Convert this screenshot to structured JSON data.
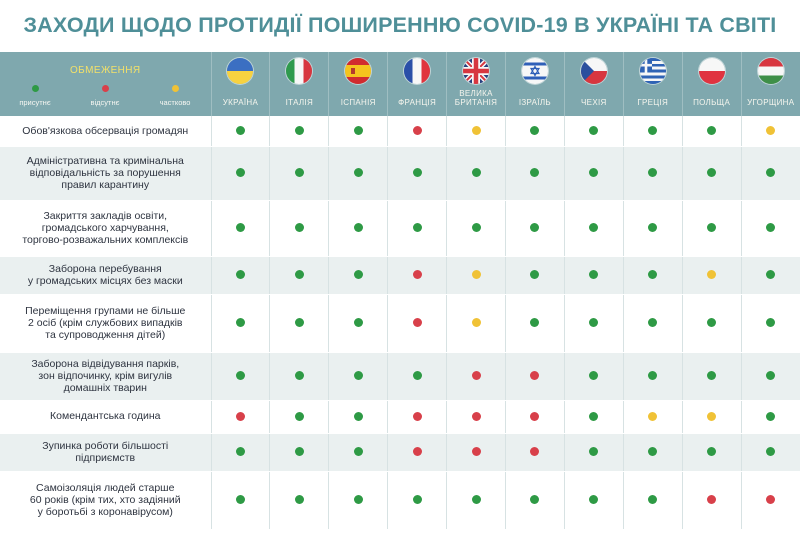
{
  "title": "ЗАХОДИ ЩОДО ПРОТИДІЇ ПОШИРЕННЮ COVID-19 В УКРАЇНІ ТА СВІТІ",
  "legend": {
    "title": "ОБМЕЖЕННЯ",
    "items": [
      {
        "key": "present",
        "label": "присутнє",
        "color": "#2e9a45"
      },
      {
        "key": "absent",
        "label": "відсутнє",
        "color": "#d8404a"
      },
      {
        "key": "partial",
        "label": "частково",
        "color": "#f0c236"
      }
    ]
  },
  "countries": [
    {
      "name": "УКРАЇНА",
      "flag": "ukraine-flag-icon",
      "css": "f-ua"
    },
    {
      "name": "ІТАЛІЯ",
      "flag": "italy-flag-icon",
      "css": "f-it"
    },
    {
      "name": "ІСПАНІЯ",
      "flag": "spain-flag-icon",
      "css": "f-es"
    },
    {
      "name": "ФРАНЦІЯ",
      "flag": "france-flag-icon",
      "css": "f-fr"
    },
    {
      "name": "ВЕЛИКА\nБРИТАНІЯ",
      "flag": "uk-flag-icon",
      "css": "f-gb"
    },
    {
      "name": "ІЗРАЇЛЬ",
      "flag": "israel-flag-icon",
      "css": "f-il"
    },
    {
      "name": "ЧЕХІЯ",
      "flag": "czechia-flag-icon",
      "css": "f-cz"
    },
    {
      "name": "ГРЕЦІЯ",
      "flag": "greece-flag-icon",
      "css": "f-gr"
    },
    {
      "name": "ПОЛЬЩА",
      "flag": "poland-flag-icon",
      "css": "f-pl"
    },
    {
      "name": "УГОРЩИНА",
      "flag": "hungary-flag-icon",
      "css": "f-hu"
    }
  ],
  "measures": [
    {
      "label": "Обов'язкова обсервація громадян",
      "status": [
        "present",
        "present",
        "present",
        "absent",
        "partial",
        "present",
        "present",
        "present",
        "present",
        "partial"
      ]
    },
    {
      "label": "Адміністративна та кримінальна\nвідповідальність за порушення\nправил карантину",
      "status": [
        "present",
        "present",
        "present",
        "present",
        "present",
        "present",
        "present",
        "present",
        "present",
        "present"
      ]
    },
    {
      "label": "Закриття закладів освіти,\nгромадського харчування,\nторгово-розважальних комплексів",
      "status": [
        "present",
        "present",
        "present",
        "present",
        "present",
        "present",
        "present",
        "present",
        "present",
        "present"
      ]
    },
    {
      "label": "Заборона перебування\nу громадських місцях без маски",
      "status": [
        "present",
        "present",
        "present",
        "absent",
        "partial",
        "present",
        "present",
        "present",
        "partial",
        "present"
      ]
    },
    {
      "label": "Переміщення групами не більше\n2 осіб (крім службових випадків\nта супроводження дітей)",
      "status": [
        "present",
        "present",
        "present",
        "absent",
        "partial",
        "present",
        "present",
        "present",
        "present",
        "present"
      ]
    },
    {
      "label": "Заборона відвідування парків,\nзон відпочинку, крім вигулів\nдомашніх тварин",
      "status": [
        "present",
        "present",
        "present",
        "present",
        "absent",
        "absent",
        "present",
        "present",
        "present",
        "present"
      ]
    },
    {
      "label": "Комендантська година",
      "status": [
        "absent",
        "present",
        "present",
        "absent",
        "absent",
        "absent",
        "present",
        "partial",
        "partial",
        "present"
      ]
    },
    {
      "label": "Зупинка роботи більшості\nпідприємств",
      "status": [
        "present",
        "present",
        "present",
        "absent",
        "absent",
        "absent",
        "present",
        "present",
        "present",
        "present"
      ]
    },
    {
      "label": "Самоізоляція людей старше\n60 років (крім тих, хто задіяний\nу боротьбі з коронавірусом)",
      "status": [
        "present",
        "present",
        "present",
        "present",
        "present",
        "present",
        "present",
        "present",
        "absent",
        "absent"
      ]
    }
  ]
}
